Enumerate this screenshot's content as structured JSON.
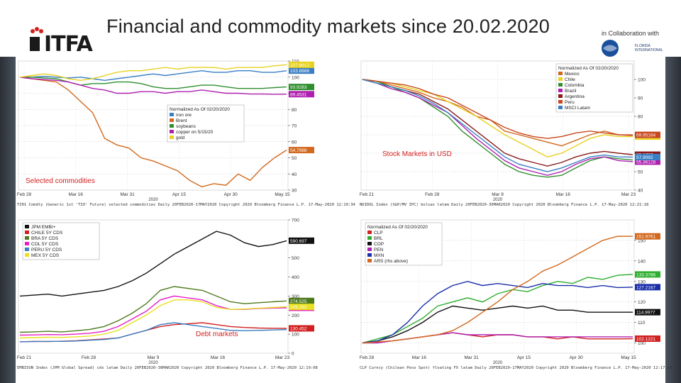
{
  "page": {
    "title": "Financial and commodity markets since 20.02.2020"
  },
  "branding": {
    "logo_text": "ITFA",
    "collab_text": "in Collaboration with",
    "partner_name_1": "FLORIDA",
    "partner_name_2": "INTERNATIONAL"
  },
  "colors": {
    "side_strip": "#3a4049"
  },
  "chart_data": [
    {
      "type": "line",
      "panel": "top-left",
      "annotation": "Selected commodities",
      "legend_title": "Normalized As Of 02/20/2020",
      "legend_placement": "center",
      "x_ticks": [
        "Feb 28",
        "Mar 16",
        "Mar 31",
        "Apr 15",
        "Apr 30",
        "May 15"
      ],
      "x_year": "2020",
      "ylim": [
        30,
        110
      ],
      "y_ticks": [
        30,
        40,
        50,
        60,
        70,
        80,
        90,
        100,
        110
      ],
      "grid": true,
      "series": [
        {
          "name": "iron ore",
          "color": "#3a7fc4",
          "last_label": "103.8886",
          "values": [
            100,
            100,
            100.5,
            100,
            99.5,
            100,
            99,
            98,
            99,
            100,
            101,
            102,
            101,
            102,
            103,
            104,
            103,
            103,
            104,
            104,
            103,
            103,
            104
          ]
        },
        {
          "name": "Brent",
          "color": "#d2691e",
          "last_label": "54.7988",
          "values": [
            100,
            99,
            98,
            97,
            92,
            85,
            78,
            62,
            58,
            56,
            50,
            48,
            45,
            42,
            36,
            32,
            34,
            33,
            40,
            36,
            44,
            50,
            54.8
          ]
        },
        {
          "name": "soybeans",
          "color": "#2f8f2f",
          "last_label": "93.9283",
          "values": [
            100,
            100,
            99.5,
            99,
            97,
            95,
            96,
            96,
            97,
            97,
            96,
            94,
            93,
            93,
            94,
            95,
            95,
            94,
            93,
            93,
            93,
            93.5,
            93.9
          ]
        },
        {
          "name": "copper on 5/15/20",
          "color": "#b020b0",
          "last_label": "89.4531",
          "values": [
            100,
            99,
            98.5,
            98,
            97,
            95,
            93,
            92,
            90,
            90,
            91,
            91,
            90,
            91,
            91,
            92,
            91,
            90,
            90,
            89.5,
            89.5,
            89.4,
            89.45
          ]
        },
        {
          "name": "gold",
          "color": "#e8d21e",
          "last_label": "107.6612",
          "values": [
            100,
            101,
            102,
            101,
            99,
            98,
            99,
            101,
            103,
            104,
            104,
            105,
            106,
            105,
            106,
            106,
            106,
            105,
            106,
            106,
            106,
            107,
            107.66
          ]
        }
      ],
      "footer": "TZ01 Comdty (Generic 1st 'TIO' Future) selected commodities  Daily 20FEB2020-17MAY2020  Copyright 2020 Bloomberg Finance L.P.  17-May-2020 12:10:34"
    },
    {
      "type": "line",
      "panel": "top-right",
      "annotation": "Stock Markets in USD",
      "legend_title": "Normalized As Of 02/20/2020",
      "legend_placement": "top-right",
      "x_ticks": [
        "Feb 21",
        "Feb 28",
        "Mar 9",
        "Mar 16",
        "Mar 23"
      ],
      "x_year": "2020",
      "ylim": [
        40,
        110
      ],
      "y_ticks": [
        40,
        50,
        60,
        70,
        80,
        90,
        100
      ],
      "grid": true,
      "series": [
        {
          "name": "Mexico",
          "color": "#d2691e",
          "last_label": "69.4658",
          "values": [
            100,
            99,
            97,
            95,
            93,
            90,
            88,
            85,
            80,
            78,
            72,
            70,
            68,
            66,
            64,
            67,
            70,
            72,
            70,
            69.5
          ]
        },
        {
          "name": "Chile",
          "color": "#e8d21e",
          "last_label": "68.9865",
          "values": [
            100,
            99,
            98,
            96,
            94,
            92,
            88,
            84,
            80,
            75,
            70,
            66,
            62,
            58,
            60,
            64,
            68,
            70,
            69,
            69
          ]
        },
        {
          "name": "Colombia",
          "color": "#2f8f2f",
          "last_label": "56.309",
          "values": [
            100,
            99,
            96,
            93,
            90,
            85,
            80,
            72,
            66,
            60,
            54,
            50,
            48,
            47,
            48,
            52,
            56,
            58,
            57,
            56.3
          ]
        },
        {
          "name": "Brazil",
          "color": "#b020b0",
          "last_label": "55.36128",
          "values": [
            100,
            98,
            95,
            93,
            90,
            86,
            82,
            75,
            68,
            62,
            56,
            52,
            50,
            48,
            50,
            54,
            57,
            58,
            56,
            55.4
          ]
        },
        {
          "name": "Argentina",
          "color": "#8b1a1a",
          "last_label": "59.1787",
          "values": [
            100,
            98,
            96,
            94,
            92,
            88,
            84,
            78,
            72,
            66,
            60,
            57,
            55,
            53,
            55,
            58,
            60,
            61,
            60,
            59.2
          ]
        },
        {
          "name": "Peru",
          "color": "#c8471e",
          "last_label": "69.95164",
          "values": [
            100,
            99,
            98,
            97,
            95,
            92,
            90,
            86,
            82,
            78,
            74,
            71,
            69,
            68,
            69,
            71,
            72,
            71,
            70,
            69.95
          ]
        },
        {
          "name": "MSCI Latam",
          "color": "#3a7fc4",
          "last_label": "57.9092",
          "values": [
            100,
            98,
            96,
            94,
            91,
            87,
            82,
            76,
            70,
            64,
            58,
            54,
            52,
            50,
            52,
            55,
            58,
            59,
            58,
            57.9
          ]
        }
      ],
      "footer": "NDIDOL Index (S&P/MV IPC) bolsas latam  Daily 20FEB2020-30MAR2020  Copyright 2020 Bloomberg Finance L.P.  17-May-2020 12:21:18"
    },
    {
      "type": "line",
      "panel": "bottom-left",
      "annotation": "Debt markets",
      "legend_placement": "top-left",
      "x_ticks": [
        "Feb 21",
        "Feb 28",
        "Mar 9",
        "Mar 16",
        "Mar 23"
      ],
      "x_year": "2020",
      "ylim": [
        0,
        700
      ],
      "y_ticks": [
        0,
        100,
        200,
        300,
        400,
        500,
        600,
        700
      ],
      "grid": false,
      "series": [
        {
          "name": "JPM EMBI+",
          "color": "#111111",
          "last_label": "590.697",
          "values": [
            300,
            305,
            310,
            300,
            310,
            320,
            330,
            350,
            380,
            420,
            470,
            520,
            560,
            600,
            640,
            620,
            580,
            560,
            570,
            590.7
          ]
        },
        {
          "name": "CHILE 5Y CDS",
          "color": "#d22020",
          "last_label": "130.452",
          "values": [
            60,
            62,
            61,
            63,
            65,
            70,
            75,
            80,
            100,
            120,
            140,
            150,
            155,
            160,
            150,
            140,
            135,
            132,
            131,
            130.45
          ]
        },
        {
          "name": "BRA 5Y CDS",
          "color": "#4e7a1e",
          "last_label": "274.525",
          "values": [
            110,
            112,
            115,
            112,
            118,
            125,
            140,
            170,
            210,
            260,
            330,
            350,
            340,
            330,
            300,
            270,
            260,
            265,
            270,
            274.5
          ]
        },
        {
          "name": "COL 5Y CDS",
          "color": "#e81ec8",
          "last_label": "238.277",
          "values": [
            95,
            96,
            98,
            97,
            100,
            105,
            115,
            140,
            180,
            220,
            280,
            300,
            290,
            280,
            250,
            230,
            230,
            235,
            237,
            238.3
          ]
        },
        {
          "name": "PERU 5Y CDS",
          "color": "#3a7fc4",
          "last_label": "",
          "values": [
            60,
            61,
            62,
            62,
            64,
            68,
            72,
            80,
            100,
            120,
            150,
            160,
            150,
            140,
            130,
            120,
            118,
            120,
            122,
            124
          ]
        },
        {
          "name": "MEX 5Y CDS",
          "color": "#e8e020",
          "last_label": "243.292",
          "values": [
            80,
            82,
            84,
            83,
            86,
            90,
            100,
            120,
            160,
            200,
            250,
            280,
            280,
            270,
            240,
            230,
            232,
            236,
            240,
            243.3
          ]
        }
      ],
      "footer": "EMBI5UN Index (JPM Global Spread) cds latam  Daily 20FEB2020-30MAR2020  Copyright 2020 Bloomberg Finance L.P.  17-May-2020 12:19:08"
    },
    {
      "type": "line",
      "panel": "bottom-right",
      "legend_title": "Normalized As Of 02/20/2020",
      "legend_placement": "top-left",
      "x_ticks": [
        "Feb 28",
        "Mar 16",
        "Mar 31",
        "Apr 15",
        "Apr 30",
        "May 15"
      ],
      "x_year": "2020",
      "ylim": [
        95,
        160
      ],
      "y_ticks": [
        100,
        110,
        120,
        130,
        140,
        150
      ],
      "grid": true,
      "series": [
        {
          "name": "CLP",
          "color": "#d22020",
          "last_label": "102.1221",
          "values": [
            100,
            100.5,
            101,
            102,
            103,
            104,
            105,
            104,
            103,
            104,
            104,
            103,
            103,
            102,
            103,
            102,
            102,
            102,
            102.1
          ]
        },
        {
          "name": "BRL",
          "color": "#2fae2f",
          "last_label": "133.3786",
          "values": [
            100,
            102,
            104,
            108,
            112,
            118,
            120,
            122,
            120,
            124,
            126,
            125,
            128,
            130,
            129,
            132,
            131,
            133,
            133.4
          ]
        },
        {
          "name": "COP",
          "color": "#111111",
          "last_label": "114.9977",
          "values": [
            100,
            101,
            103,
            106,
            110,
            115,
            118,
            117,
            116,
            117,
            118,
            117,
            118,
            116,
            116,
            115,
            115,
            115,
            115
          ]
        },
        {
          "name": "PEN",
          "color": "#b020b0",
          "last_label": "",
          "values": [
            100,
            100,
            101,
            102,
            103,
            104,
            105,
            104,
            104,
            104,
            104,
            103,
            103,
            103,
            103,
            103,
            103,
            103,
            103
          ]
        },
        {
          "name": "MXN",
          "color": "#1a2ea8",
          "last_label": "127.2167",
          "values": [
            100,
            101,
            104,
            110,
            118,
            124,
            128,
            130,
            128,
            129,
            128,
            127,
            129,
            128,
            128,
            127,
            128,
            127,
            127.2
          ]
        },
        {
          "name": "ARS (rhs above)",
          "color": "#d2691e",
          "last_label": "151.9761",
          "values": [
            100,
            100.5,
            101,
            102,
            103,
            104,
            106,
            110,
            115,
            120,
            126,
            130,
            135,
            138,
            142,
            146,
            150,
            152,
            151.98
          ]
        }
      ],
      "footer": "CLP Curncy (Chilean Peso Spot) floating FX latam  Daily 20FEB2020-17MAY2020  Copyright 2020 Bloomberg Finance L.P.  17-May-2020 12:17:10"
    }
  ]
}
